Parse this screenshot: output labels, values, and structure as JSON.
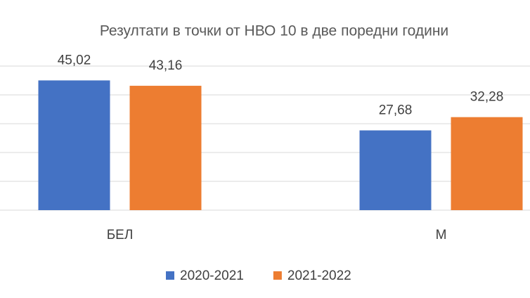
{
  "chart_data": {
    "type": "bar",
    "title": "Резултати в точки от НВО 10 в две поредни години",
    "categories": [
      "БЕЛ",
      "М"
    ],
    "series": [
      {
        "name": "2020-2021",
        "color": "#4472c4",
        "values": [
          45.02,
          27.68
        ],
        "value_labels": [
          "45,02",
          "27,68"
        ]
      },
      {
        "name": "2021-2022",
        "color": "#ed7d31",
        "values": [
          43.16,
          32.28
        ],
        "value_labels": [
          "43,16",
          "32,28"
        ]
      }
    ],
    "ylim": [
      0,
      50
    ],
    "yticks": [
      0,
      10,
      20,
      30,
      40,
      50
    ],
    "grid": true,
    "legend": "bottom"
  }
}
